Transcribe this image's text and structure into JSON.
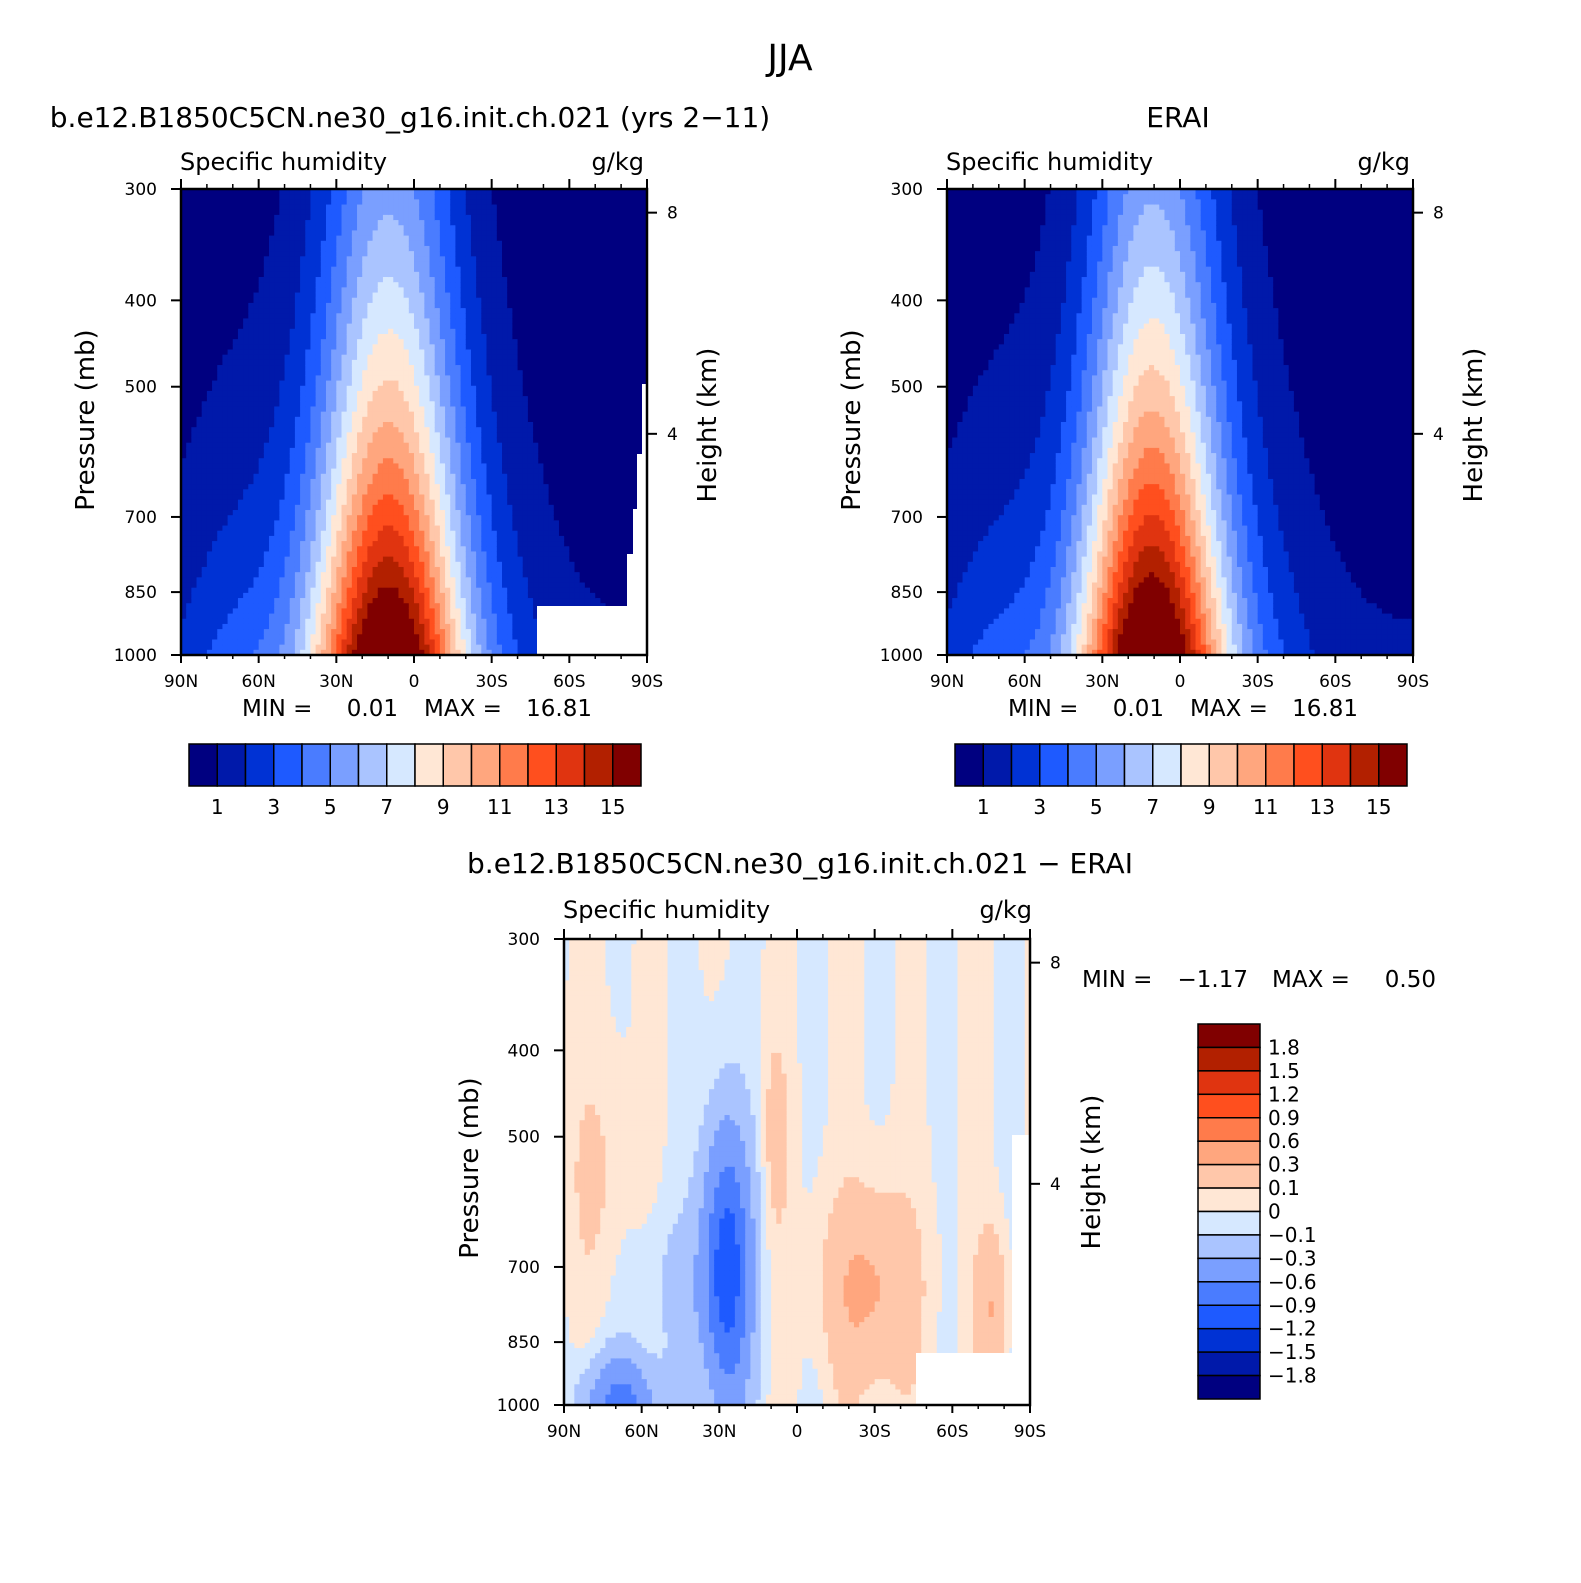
{
  "figure": {
    "main_title": "JJA"
  },
  "palettes": {
    "abs": [
      "#000080",
      "#0019AA",
      "#0032D4",
      "#1E5AFF",
      "#4A7CFF",
      "#7A9FFF",
      "#AAC4FF",
      "#D6E8FF",
      "#FFE7D5",
      "#FFC7AA",
      "#FFA67E",
      "#FF7B4B",
      "#FF4F1E",
      "#E03410",
      "#B22000",
      "#800000"
    ],
    "diff": [
      "#000080",
      "#0019AA",
      "#0032D4",
      "#1E5AFF",
      "#4A7CFF",
      "#7A9FFF",
      "#AAC4FF",
      "#D6E8FF",
      "#FFE7D5",
      "#FFC7AA",
      "#FFA67E",
      "#FF7B4B",
      "#FF4F1E",
      "#E03410",
      "#B22000",
      "#800000"
    ]
  },
  "chart_data": [
    {
      "type": "heatmap",
      "title": "b.e12.B1850C5CN.ne30_g16.init.ch.021 (yrs 2−11)",
      "label_left": "Specific humidity",
      "label_right": "g/kg",
      "xlabel": "",
      "ylabel": "Pressure (mb)",
      "ylabel_right": "Height (km)",
      "x_ticks": [
        "90N",
        "60N",
        "30N",
        "0",
        "30S",
        "60S",
        "90S"
      ],
      "y_ticks": [
        "300",
        "400",
        "500",
        "700",
        "850",
        "1000"
      ],
      "y_ticks_right": [
        "8",
        "4"
      ],
      "x_range": [
        90,
        -90
      ],
      "y_range": [
        300,
        1000
      ],
      "stats": {
        "min_label": "MIN =",
        "min": "0.01",
        "max_label": "MAX =",
        "max": "16.81"
      },
      "colorbar": {
        "labels": [
          "1",
          "3",
          "5",
          "7",
          "9",
          "11",
          "13",
          "15"
        ],
        "orientation": "horizontal"
      },
      "contour_levels_approx": [
        1,
        2,
        3,
        4,
        5,
        6,
        7,
        8,
        9,
        10,
        11,
        12,
        13,
        14,
        15
      ]
    },
    {
      "type": "heatmap",
      "title": "ERAI",
      "label_left": "Specific humidity",
      "label_right": "g/kg",
      "xlabel": "",
      "ylabel": "Pressure (mb)",
      "ylabel_right": "Height (km)",
      "x_ticks": [
        "90N",
        "60N",
        "30N",
        "0",
        "30S",
        "60S",
        "90S"
      ],
      "y_ticks": [
        "300",
        "400",
        "500",
        "700",
        "850",
        "1000"
      ],
      "y_ticks_right": [
        "8",
        "4"
      ],
      "x_range": [
        90,
        -90
      ],
      "y_range": [
        300,
        1000
      ],
      "stats": {
        "min_label": "MIN =",
        "min": "0.01",
        "max_label": "MAX =",
        "max": "16.81"
      },
      "colorbar": {
        "labels": [
          "1",
          "3",
          "5",
          "7",
          "9",
          "11",
          "13",
          "15"
        ],
        "orientation": "horizontal"
      }
    },
    {
      "type": "heatmap",
      "title": "b.e12.B1850C5CN.ne30_g16.init.ch.021 − ERAI",
      "label_left": "Specific humidity",
      "label_right": "g/kg",
      "xlabel": "",
      "ylabel": "Pressure (mb)",
      "ylabel_right": "Height (km)",
      "x_ticks": [
        "90N",
        "60N",
        "30N",
        "0",
        "30S",
        "60S",
        "90S"
      ],
      "y_ticks": [
        "300",
        "400",
        "500",
        "700",
        "850",
        "1000"
      ],
      "y_ticks_right": [
        "8",
        "4"
      ],
      "x_range": [
        90,
        -90
      ],
      "y_range": [
        300,
        1000
      ],
      "stats": {
        "min_label": "MIN =",
        "min": "−1.17",
        "max_label": "MAX =",
        "max": "0.50"
      },
      "colorbar": {
        "labels": [
          "1.8",
          "1.5",
          "1.2",
          "0.9",
          "0.6",
          "0.3",
          "0.1",
          "0",
          "−0.1",
          "−0.3",
          "−0.6",
          "−0.9",
          "−1.2",
          "−1.5",
          "−1.8"
        ],
        "orientation": "vertical"
      }
    }
  ]
}
